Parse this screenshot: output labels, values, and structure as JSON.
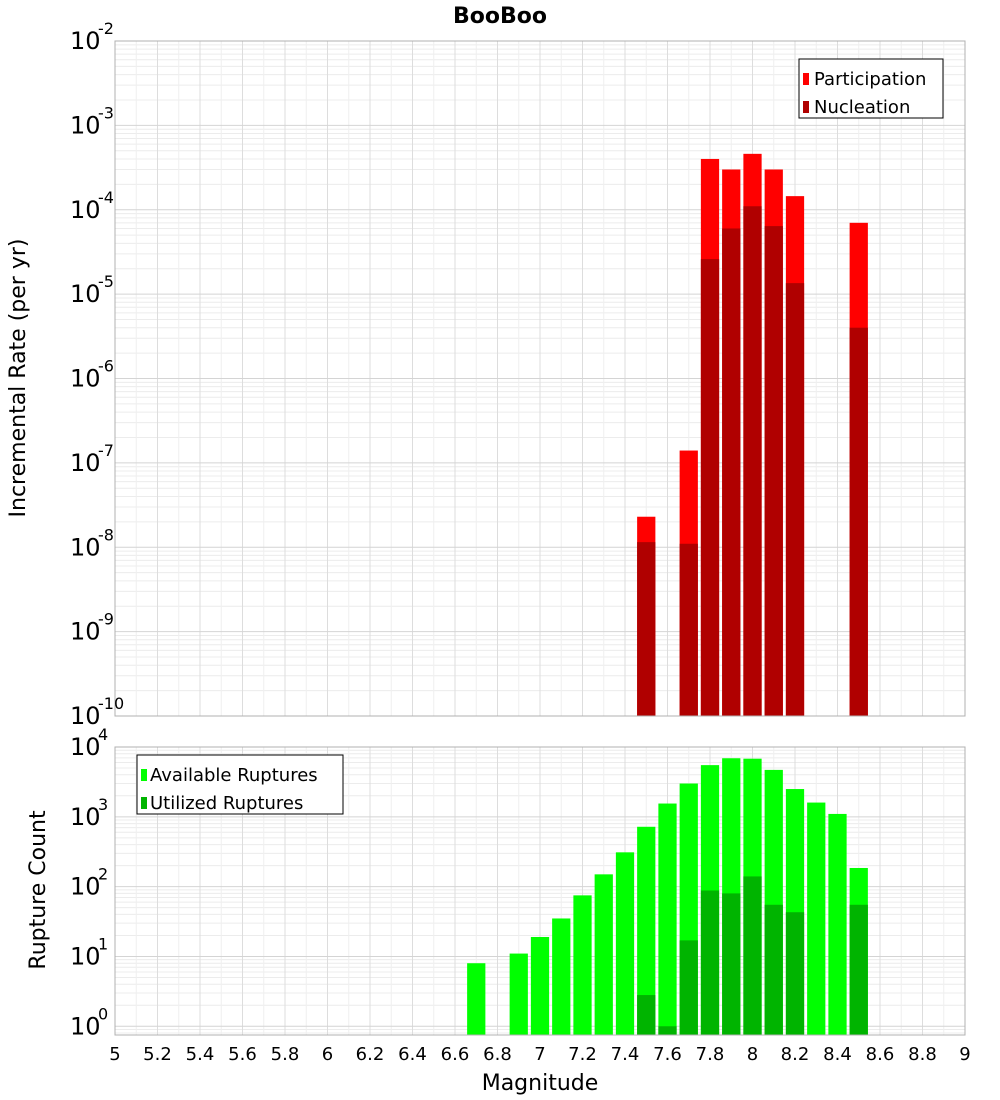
{
  "chart_data": [
    {
      "type": "bar",
      "title": "BooBoo",
      "xlabel": "",
      "ylabel": "Incremental Rate (per yr)",
      "xlim": [
        5,
        9
      ],
      "ylim": [
        1e-10,
        0.01
      ],
      "y_scale": "log",
      "grid": true,
      "legend_position": "top-right",
      "x": [
        7.5,
        7.7,
        7.8,
        7.9,
        8.0,
        8.1,
        8.2,
        8.5
      ],
      "series": [
        {
          "name": "Participation",
          "color": "#ff0000",
          "values": [
            2.3e-08,
            1.4e-07,
            0.0004,
            0.0003,
            0.00046,
            0.0003,
            0.000145,
            7e-05
          ]
        },
        {
          "name": "Nucleation",
          "color": "#b00000",
          "values": [
            1.15e-08,
            1.1e-08,
            2.6e-05,
            6e-05,
            0.00011,
            6.4e-05,
            1.35e-05,
            4e-06
          ]
        }
      ],
      "y_ticks": [
        {
          "base": "10",
          "exp": "-2"
        },
        {
          "base": "10",
          "exp": "-3"
        },
        {
          "base": "10",
          "exp": "-4"
        },
        {
          "base": "10",
          "exp": "-5"
        },
        {
          "base": "10",
          "exp": "-6"
        },
        {
          "base": "10",
          "exp": "-7"
        },
        {
          "base": "10",
          "exp": "-8"
        },
        {
          "base": "10",
          "exp": "-9"
        },
        {
          "base": "10",
          "exp": "-10"
        }
      ]
    },
    {
      "type": "bar",
      "title": "",
      "xlabel": "Magnitude",
      "ylabel": "Rupture Count",
      "xlim": [
        5,
        9
      ],
      "ylim": [
        0.75,
        10000
      ],
      "y_scale": "log",
      "grid": true,
      "legend_position": "top-left",
      "x": [
        6.7,
        6.9,
        7.0,
        7.1,
        7.2,
        7.3,
        7.4,
        7.5,
        7.6,
        7.7,
        7.8,
        7.9,
        8.0,
        8.1,
        8.2,
        8.3,
        8.4,
        8.5
      ],
      "series": [
        {
          "name": "Available Ruptures",
          "color": "#00ff00",
          "values": [
            8,
            11,
            19,
            35,
            75,
            150,
            310,
            720,
            1550,
            3000,
            5500,
            6900,
            6800,
            4700,
            2500,
            1600,
            1100,
            185
          ]
        },
        {
          "name": "Utilized Ruptures",
          "color": "#00b400",
          "values": [
            null,
            null,
            null,
            null,
            null,
            null,
            null,
            2.8,
            1.0,
            17,
            88,
            80,
            140,
            55,
            43,
            null,
            null,
            55
          ]
        }
      ],
      "y_ticks": [
        {
          "base": "10",
          "exp": "4"
        },
        {
          "base": "10",
          "exp": "3"
        },
        {
          "base": "10",
          "exp": "2"
        },
        {
          "base": "10",
          "exp": "1"
        },
        {
          "base": "10",
          "exp": "0"
        }
      ],
      "x_ticks": [
        "5",
        "5.2",
        "5.4",
        "5.6",
        "5.8",
        "6",
        "6.2",
        "6.4",
        "6.6",
        "6.8",
        "7",
        "7.2",
        "7.4",
        "7.6",
        "7.8",
        "8",
        "8.2",
        "8.4",
        "8.6",
        "8.8",
        "9"
      ]
    }
  ]
}
